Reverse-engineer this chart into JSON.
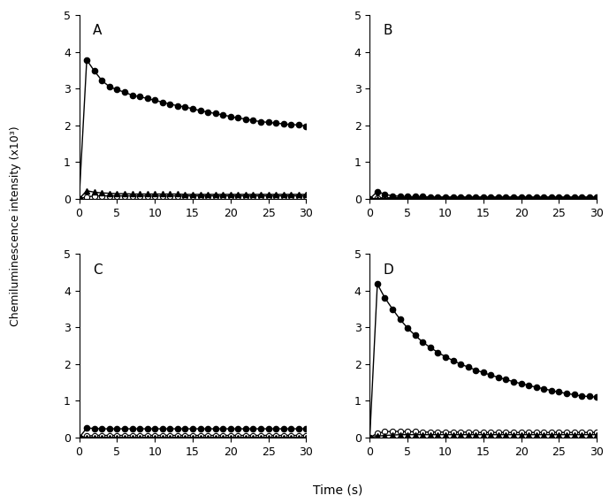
{
  "time": [
    0,
    1,
    2,
    3,
    4,
    5,
    6,
    7,
    8,
    9,
    10,
    11,
    12,
    13,
    14,
    15,
    16,
    17,
    18,
    19,
    20,
    21,
    22,
    23,
    24,
    25,
    26,
    27,
    28,
    29,
    30
  ],
  "A_filled": [
    0.0,
    3.78,
    3.48,
    3.22,
    3.05,
    2.97,
    2.9,
    2.82,
    2.78,
    2.73,
    2.68,
    2.63,
    2.58,
    2.53,
    2.5,
    2.45,
    2.4,
    2.36,
    2.32,
    2.28,
    2.24,
    2.2,
    2.17,
    2.13,
    2.1,
    2.08,
    2.06,
    2.04,
    2.02,
    2.01,
    1.98
  ],
  "A_open": [
    0.0,
    0.05,
    0.08,
    0.08,
    0.08,
    0.08,
    0.08,
    0.08,
    0.08,
    0.08,
    0.08,
    0.08,
    0.08,
    0.08,
    0.08,
    0.08,
    0.08,
    0.08,
    0.08,
    0.08,
    0.08,
    0.08,
    0.08,
    0.08,
    0.08,
    0.08,
    0.08,
    0.08,
    0.08,
    0.08,
    0.08
  ],
  "A_tri": [
    0.0,
    0.22,
    0.18,
    0.16,
    0.15,
    0.14,
    0.14,
    0.13,
    0.13,
    0.13,
    0.13,
    0.13,
    0.13,
    0.13,
    0.12,
    0.12,
    0.12,
    0.12,
    0.12,
    0.12,
    0.12,
    0.12,
    0.12,
    0.12,
    0.12,
    0.12,
    0.12,
    0.12,
    0.12,
    0.12,
    0.12
  ],
  "B_filled": [
    0.0,
    0.2,
    0.12,
    0.08,
    0.07,
    0.06,
    0.06,
    0.06,
    0.05,
    0.05,
    0.05,
    0.05,
    0.05,
    0.05,
    0.05,
    0.05,
    0.05,
    0.05,
    0.05,
    0.05,
    0.05,
    0.05,
    0.05,
    0.05,
    0.05,
    0.05,
    0.05,
    0.05,
    0.05,
    0.05,
    0.05
  ],
  "B_open": [
    0.0,
    0.02,
    0.03,
    0.03,
    0.03,
    0.03,
    0.03,
    0.03,
    0.03,
    0.03,
    0.03,
    0.03,
    0.03,
    0.03,
    0.03,
    0.03,
    0.03,
    0.03,
    0.03,
    0.03,
    0.03,
    0.03,
    0.03,
    0.03,
    0.03,
    0.03,
    0.03,
    0.03,
    0.03,
    0.03,
    0.03
  ],
  "B_tri": [
    0.0,
    0.005,
    0.005,
    0.005,
    0.005,
    0.005,
    0.005,
    0.005,
    0.005,
    0.005,
    0.005,
    0.005,
    0.005,
    0.005,
    0.005,
    0.005,
    0.005,
    0.005,
    0.005,
    0.005,
    0.005,
    0.005,
    0.005,
    0.005,
    0.005,
    0.005,
    0.005,
    0.005,
    0.005,
    0.005,
    0.005
  ],
  "C_filled": [
    0.0,
    0.26,
    0.25,
    0.24,
    0.24,
    0.24,
    0.24,
    0.24,
    0.24,
    0.24,
    0.24,
    0.24,
    0.24,
    0.24,
    0.24,
    0.24,
    0.24,
    0.24,
    0.24,
    0.24,
    0.24,
    0.24,
    0.24,
    0.24,
    0.24,
    0.24,
    0.24,
    0.24,
    0.24,
    0.24,
    0.24
  ],
  "C_open": [
    0.0,
    0.04,
    0.06,
    0.06,
    0.06,
    0.06,
    0.06,
    0.06,
    0.06,
    0.06,
    0.06,
    0.06,
    0.06,
    0.06,
    0.06,
    0.06,
    0.06,
    0.06,
    0.06,
    0.06,
    0.06,
    0.06,
    0.06,
    0.06,
    0.06,
    0.06,
    0.06,
    0.06,
    0.06,
    0.06,
    0.06
  ],
  "C_tri": [
    0.0,
    0.005,
    0.005,
    0.005,
    0.005,
    0.005,
    0.005,
    0.005,
    0.005,
    0.005,
    0.005,
    0.005,
    0.005,
    0.005,
    0.005,
    0.005,
    0.005,
    0.005,
    0.005,
    0.005,
    0.005,
    0.005,
    0.005,
    0.005,
    0.005,
    0.005,
    0.005,
    0.005,
    0.005,
    0.005,
    0.005
  ],
  "D_filled": [
    0.0,
    4.18,
    3.8,
    3.5,
    3.22,
    2.98,
    2.78,
    2.6,
    2.45,
    2.32,
    2.2,
    2.1,
    2.0,
    1.92,
    1.84,
    1.77,
    1.7,
    1.64,
    1.58,
    1.52,
    1.47,
    1.42,
    1.37,
    1.33,
    1.28,
    1.24,
    1.2,
    1.17,
    1.13,
    1.12,
    1.1
  ],
  "D_open": [
    0.0,
    0.12,
    0.16,
    0.17,
    0.17,
    0.16,
    0.16,
    0.15,
    0.15,
    0.15,
    0.15,
    0.15,
    0.15,
    0.15,
    0.14,
    0.14,
    0.14,
    0.14,
    0.14,
    0.14,
    0.14,
    0.14,
    0.14,
    0.14,
    0.14,
    0.14,
    0.14,
    0.14,
    0.14,
    0.14,
    0.14
  ],
  "D_tri": [
    0.0,
    0.04,
    0.06,
    0.07,
    0.08,
    0.08,
    0.08,
    0.08,
    0.08,
    0.08,
    0.08,
    0.08,
    0.08,
    0.08,
    0.08,
    0.08,
    0.08,
    0.08,
    0.08,
    0.08,
    0.08,
    0.08,
    0.08,
    0.08,
    0.08,
    0.08,
    0.08,
    0.08,
    0.08,
    0.08,
    0.08
  ],
  "ylim": [
    0,
    5
  ],
  "yticks": [
    0,
    1,
    2,
    3,
    4,
    5
  ],
  "xticks": [
    0,
    5,
    10,
    15,
    20,
    25,
    30
  ],
  "xlim": [
    0,
    30
  ],
  "panel_labels": [
    "A",
    "B",
    "C",
    "D"
  ],
  "ylabel": "Chemiluminescence intensity (x10³)",
  "xlabel": "Time (s)",
  "color_filled": "#000000",
  "color_open": "#000000",
  "color_tri": "#000000",
  "marker_size": 4.5,
  "line_width": 1.0
}
